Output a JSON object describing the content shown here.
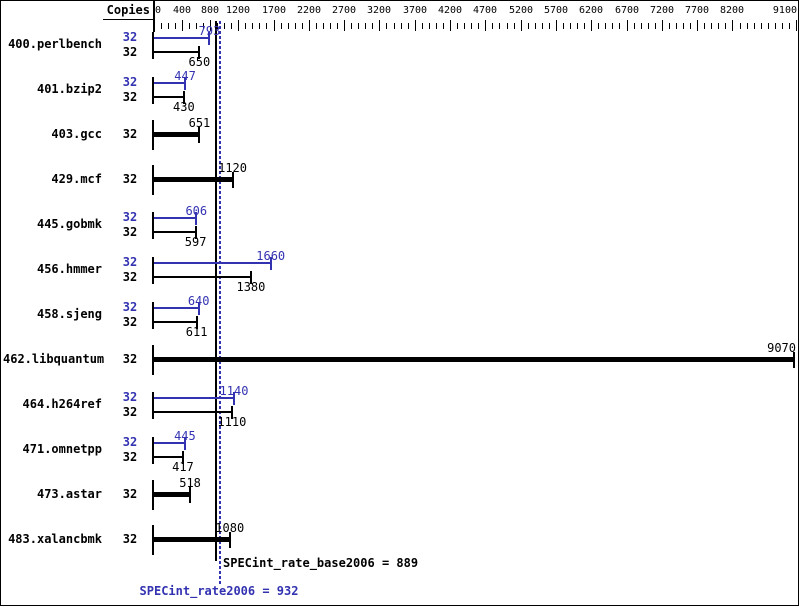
{
  "header": {
    "copies_label": "Copies"
  },
  "colors": {
    "peak_blue": "#3333b2",
    "base_black": "#000000",
    "background": "#ffffff"
  },
  "axis": {
    "min": 0,
    "max": 9100,
    "labeled_ticks": [
      0,
      400,
      800,
      1200,
      1700,
      2200,
      2700,
      3200,
      3700,
      4200,
      4700,
      5200,
      5700,
      6200,
      6700,
      7200,
      7700,
      8200,
      9100
    ],
    "minor_tick_step": 100
  },
  "benchmarks": [
    {
      "name": "400.perlbench",
      "copies": "32",
      "peak": 793,
      "base": 650
    },
    {
      "name": "401.bzip2",
      "copies": "32",
      "peak": 447,
      "base": 430
    },
    {
      "name": "403.gcc",
      "copies": "32",
      "single": 651
    },
    {
      "name": "429.mcf",
      "copies": "32",
      "single": 1120
    },
    {
      "name": "445.gobmk",
      "copies": "32",
      "peak": 606,
      "base": 597
    },
    {
      "name": "456.hmmer",
      "copies": "32",
      "peak": 1660,
      "base": 1380
    },
    {
      "name": "458.sjeng",
      "copies": "32",
      "peak": 640,
      "base": 611
    },
    {
      "name": "462.libquantum",
      "copies": "32",
      "single": 9070
    },
    {
      "name": "464.h264ref",
      "copies": "32",
      "peak": 1140,
      "base": 1110
    },
    {
      "name": "471.omnetpp",
      "copies": "32",
      "peak": 445,
      "base": 417
    },
    {
      "name": "473.astar",
      "copies": "32",
      "single": 518
    },
    {
      "name": "483.xalancbmk",
      "copies": "32",
      "single": 1080
    }
  ],
  "summary": {
    "base": {
      "metric": "SPECint_rate_base2006",
      "value": 889,
      "text": "SPECint_rate_base2006 = 889"
    },
    "peak": {
      "metric": "SPECint_rate2006",
      "value": 932,
      "text": "SPECint_rate2006 = 932"
    }
  },
  "chart_data": {
    "type": "bar",
    "orientation": "horizontal",
    "title": "",
    "xlabel": "",
    "ylabel": "Copies",
    "xlim": [
      0,
      9100
    ],
    "x_tick_labels": [
      0,
      400,
      800,
      1200,
      1700,
      2200,
      2700,
      3200,
      3700,
      4200,
      4700,
      5200,
      5700,
      6200,
      6700,
      7200,
      7700,
      8200,
      9100
    ],
    "minor_tick_step": 100,
    "grid": false,
    "categories": [
      "400.perlbench",
      "401.bzip2",
      "403.gcc",
      "429.mcf",
      "445.gobmk",
      "456.hmmer",
      "458.sjeng",
      "462.libquantum",
      "464.h264ref",
      "471.omnetpp",
      "473.astar",
      "483.xalancbmk"
    ],
    "copies": [
      32,
      32,
      32,
      32,
      32,
      32,
      32,
      32,
      32,
      32,
      32,
      32
    ],
    "series": [
      {
        "name": "SPECint_rate2006 (peak)",
        "color": "#3333b2",
        "values": [
          793,
          447,
          651,
          1120,
          606,
          1660,
          640,
          9070,
          1140,
          445,
          518,
          1080
        ]
      },
      {
        "name": "SPECint_rate_base2006 (base)",
        "color": "#000000",
        "values": [
          650,
          430,
          651,
          1120,
          597,
          1380,
          611,
          9070,
          1110,
          417,
          518,
          1080
        ]
      }
    ],
    "single_bar_categories": [
      "403.gcc",
      "429.mcf",
      "462.libquantum",
      "473.astar",
      "483.xalancbmk"
    ],
    "reference_lines": [
      {
        "label": "SPECint_rate_base2006",
        "value": 889,
        "style": "solid",
        "color": "#000000"
      },
      {
        "label": "SPECint_rate2006",
        "value": 932,
        "style": "dotted",
        "color": "#3333b2"
      }
    ]
  }
}
